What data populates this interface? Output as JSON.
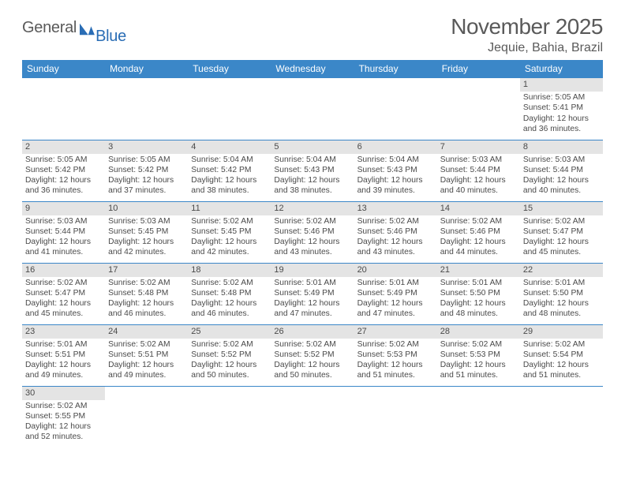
{
  "brand": {
    "general": "General",
    "blue": "Blue"
  },
  "title": "November 2025",
  "location": "Jequie, Bahia, Brazil",
  "colors": {
    "header_bg": "#3b87c8",
    "header_text": "#ffffff",
    "daynum_bg": "#e4e4e4",
    "text": "#4a4a4a",
    "rule": "#3b87c8",
    "logo_gray": "#5a5a5a",
    "logo_blue": "#2a6db5"
  },
  "weekdays": [
    "Sunday",
    "Monday",
    "Tuesday",
    "Wednesday",
    "Thursday",
    "Friday",
    "Saturday"
  ],
  "first_weekday_index": 6,
  "days": [
    {
      "n": 1,
      "sunrise": "5:05 AM",
      "sunset": "5:41 PM",
      "daylight": "12 hours and 36 minutes."
    },
    {
      "n": 2,
      "sunrise": "5:05 AM",
      "sunset": "5:42 PM",
      "daylight": "12 hours and 36 minutes."
    },
    {
      "n": 3,
      "sunrise": "5:05 AM",
      "sunset": "5:42 PM",
      "daylight": "12 hours and 37 minutes."
    },
    {
      "n": 4,
      "sunrise": "5:04 AM",
      "sunset": "5:42 PM",
      "daylight": "12 hours and 38 minutes."
    },
    {
      "n": 5,
      "sunrise": "5:04 AM",
      "sunset": "5:43 PM",
      "daylight": "12 hours and 38 minutes."
    },
    {
      "n": 6,
      "sunrise": "5:04 AM",
      "sunset": "5:43 PM",
      "daylight": "12 hours and 39 minutes."
    },
    {
      "n": 7,
      "sunrise": "5:03 AM",
      "sunset": "5:44 PM",
      "daylight": "12 hours and 40 minutes."
    },
    {
      "n": 8,
      "sunrise": "5:03 AM",
      "sunset": "5:44 PM",
      "daylight": "12 hours and 40 minutes."
    },
    {
      "n": 9,
      "sunrise": "5:03 AM",
      "sunset": "5:44 PM",
      "daylight": "12 hours and 41 minutes."
    },
    {
      "n": 10,
      "sunrise": "5:03 AM",
      "sunset": "5:45 PM",
      "daylight": "12 hours and 42 minutes."
    },
    {
      "n": 11,
      "sunrise": "5:02 AM",
      "sunset": "5:45 PM",
      "daylight": "12 hours and 42 minutes."
    },
    {
      "n": 12,
      "sunrise": "5:02 AM",
      "sunset": "5:46 PM",
      "daylight": "12 hours and 43 minutes."
    },
    {
      "n": 13,
      "sunrise": "5:02 AM",
      "sunset": "5:46 PM",
      "daylight": "12 hours and 43 minutes."
    },
    {
      "n": 14,
      "sunrise": "5:02 AM",
      "sunset": "5:46 PM",
      "daylight": "12 hours and 44 minutes."
    },
    {
      "n": 15,
      "sunrise": "5:02 AM",
      "sunset": "5:47 PM",
      "daylight": "12 hours and 45 minutes."
    },
    {
      "n": 16,
      "sunrise": "5:02 AM",
      "sunset": "5:47 PM",
      "daylight": "12 hours and 45 minutes."
    },
    {
      "n": 17,
      "sunrise": "5:02 AM",
      "sunset": "5:48 PM",
      "daylight": "12 hours and 46 minutes."
    },
    {
      "n": 18,
      "sunrise": "5:02 AM",
      "sunset": "5:48 PM",
      "daylight": "12 hours and 46 minutes."
    },
    {
      "n": 19,
      "sunrise": "5:01 AM",
      "sunset": "5:49 PM",
      "daylight": "12 hours and 47 minutes."
    },
    {
      "n": 20,
      "sunrise": "5:01 AM",
      "sunset": "5:49 PM",
      "daylight": "12 hours and 47 minutes."
    },
    {
      "n": 21,
      "sunrise": "5:01 AM",
      "sunset": "5:50 PM",
      "daylight": "12 hours and 48 minutes."
    },
    {
      "n": 22,
      "sunrise": "5:01 AM",
      "sunset": "5:50 PM",
      "daylight": "12 hours and 48 minutes."
    },
    {
      "n": 23,
      "sunrise": "5:01 AM",
      "sunset": "5:51 PM",
      "daylight": "12 hours and 49 minutes."
    },
    {
      "n": 24,
      "sunrise": "5:02 AM",
      "sunset": "5:51 PM",
      "daylight": "12 hours and 49 minutes."
    },
    {
      "n": 25,
      "sunrise": "5:02 AM",
      "sunset": "5:52 PM",
      "daylight": "12 hours and 50 minutes."
    },
    {
      "n": 26,
      "sunrise": "5:02 AM",
      "sunset": "5:52 PM",
      "daylight": "12 hours and 50 minutes."
    },
    {
      "n": 27,
      "sunrise": "5:02 AM",
      "sunset": "5:53 PM",
      "daylight": "12 hours and 51 minutes."
    },
    {
      "n": 28,
      "sunrise": "5:02 AM",
      "sunset": "5:53 PM",
      "daylight": "12 hours and 51 minutes."
    },
    {
      "n": 29,
      "sunrise": "5:02 AM",
      "sunset": "5:54 PM",
      "daylight": "12 hours and 51 minutes."
    },
    {
      "n": 30,
      "sunrise": "5:02 AM",
      "sunset": "5:55 PM",
      "daylight": "12 hours and 52 minutes."
    }
  ],
  "labels": {
    "sunrise": "Sunrise:",
    "sunset": "Sunset:",
    "daylight": "Daylight:"
  }
}
